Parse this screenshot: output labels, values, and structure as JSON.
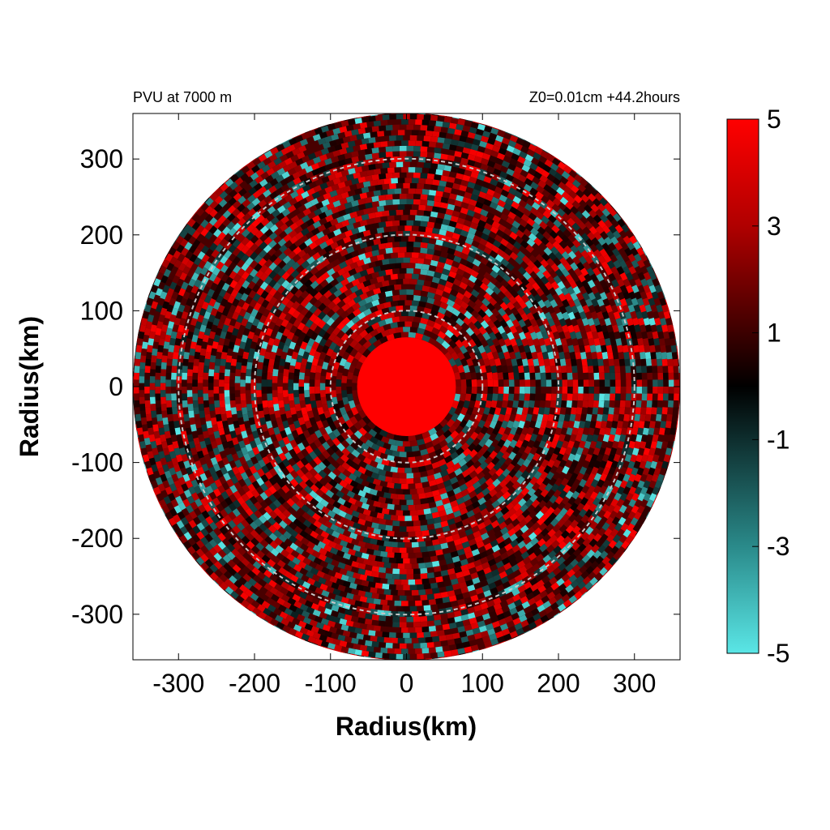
{
  "chart_data": {
    "type": "heatmap",
    "title_left": "PVU at  7000 m",
    "title_right": "Z0=0.01cm  +44.2hours",
    "xlabel": "Radius(km)",
    "ylabel": "Radius(km)",
    "xlim": [
      -360,
      360
    ],
    "ylim": [
      -360,
      360
    ],
    "xticks": [
      -300,
      -200,
      -100,
      0,
      100,
      200,
      300
    ],
    "yticks": [
      300,
      200,
      100,
      0,
      -100,
      -200,
      -300
    ],
    "domain_radius": 360,
    "reference_circles_km": [
      100,
      200,
      300
    ],
    "colorbar": {
      "min": -5,
      "max": 5,
      "tick_values": [
        5,
        3,
        1,
        -1,
        -3,
        -5
      ],
      "colors": [
        {
          "value": -5,
          "color": "#5ae6e6"
        },
        {
          "value": -3,
          "color": "#2a8a8a"
        },
        {
          "value": 0,
          "color": "#000000"
        },
        {
          "value": 1,
          "color": "#3c0000"
        },
        {
          "value": 3,
          "color": "#b00000"
        },
        {
          "value": 5,
          "color": "#ff0000"
        }
      ]
    },
    "features": {
      "core_value": 5,
      "core_radius_km": 65,
      "background_value": 1.2
    }
  }
}
